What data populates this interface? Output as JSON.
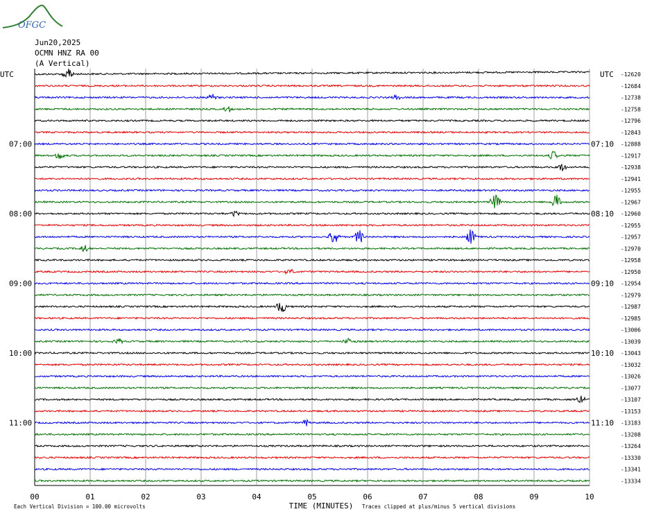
{
  "header": {
    "logo_text": "OFGC",
    "date": "Jun20,2025",
    "station": "OCMN HNZ RA 00",
    "component": "(A Vertical)"
  },
  "colors": {
    "trace_cycle": [
      "#000000",
      "#e00000",
      "#0000e0",
      "#007000"
    ],
    "grid": "#888888",
    "logo": "#2f7f2f"
  },
  "chart_data": {
    "type": "line",
    "title": "",
    "xlabel": "TIME (MINUTES)",
    "ylabel": "",
    "xlim": [
      0,
      10
    ],
    "x_ticks": [
      "00",
      "01",
      "02",
      "03",
      "04",
      "05",
      "06",
      "07",
      "08",
      "09",
      "10"
    ],
    "left_axis_label": "UTC",
    "right_axis_label": "UTC",
    "left_time_labels": [
      {
        "trace": 6,
        "label": "07:00"
      },
      {
        "trace": 12,
        "label": "08:00"
      },
      {
        "trace": 18,
        "label": "09:00"
      },
      {
        "trace": 24,
        "label": "10:00"
      },
      {
        "trace": 30,
        "label": "11:00"
      }
    ],
    "right_time_labels": [
      {
        "trace": 6,
        "label": "07:10"
      },
      {
        "trace": 12,
        "label": "08:10"
      },
      {
        "trace": 18,
        "label": "09:10"
      },
      {
        "trace": 24,
        "label": "10:10"
      },
      {
        "trace": 30,
        "label": "11:10"
      }
    ],
    "trace_offsets": [
      "-12620",
      "-12684",
      "-12738",
      "-12758",
      "-12796",
      "-12843",
      "-12888",
      "-12917",
      "-12938",
      "-12941",
      "-12955",
      "-12967",
      "-12960",
      "-12955",
      "-12957",
      "-12970",
      "-12958",
      "-12950",
      "-12954",
      "-12979",
      "-12987",
      "-12985",
      "-13006",
      "-13039",
      "-13043",
      "-13032",
      "-13026",
      "-13077",
      "-13107",
      "-13153",
      "-13183",
      "-13208",
      "-13264",
      "-13330",
      "-13341",
      "-13334"
    ],
    "events": [
      {
        "trace": 0,
        "minute": 0.6,
        "amplitude": 0.9
      },
      {
        "trace": 2,
        "minute": 3.2,
        "amplitude": 0.35
      },
      {
        "trace": 2,
        "minute": 6.5,
        "amplitude": 0.3
      },
      {
        "trace": 3,
        "minute": 3.5,
        "amplitude": 0.3
      },
      {
        "trace": 7,
        "minute": 0.45,
        "amplitude": 0.35
      },
      {
        "trace": 7,
        "minute": 9.35,
        "amplitude": 0.45
      },
      {
        "trace": 8,
        "minute": 9.5,
        "amplitude": 0.35
      },
      {
        "trace": 11,
        "minute": 8.3,
        "amplitude": 0.8
      },
      {
        "trace": 11,
        "minute": 9.4,
        "amplitude": 0.8
      },
      {
        "trace": 12,
        "minute": 3.6,
        "amplitude": 0.3
      },
      {
        "trace": 14,
        "minute": 5.4,
        "amplitude": 0.9
      },
      {
        "trace": 14,
        "minute": 5.85,
        "amplitude": 0.75
      },
      {
        "trace": 14,
        "minute": 7.85,
        "amplitude": 0.75
      },
      {
        "trace": 15,
        "minute": 0.9,
        "amplitude": 0.35
      },
      {
        "trace": 17,
        "minute": 4.6,
        "amplitude": 0.3
      },
      {
        "trace": 20,
        "minute": 4.45,
        "amplitude": 0.7
      },
      {
        "trace": 23,
        "minute": 1.5,
        "amplitude": 0.3
      },
      {
        "trace": 23,
        "minute": 5.65,
        "amplitude": 0.3
      },
      {
        "trace": 28,
        "minute": 9.85,
        "amplitude": 0.35
      },
      {
        "trace": 30,
        "minute": 4.9,
        "amplitude": 0.3
      }
    ]
  },
  "footer": {
    "scale_note": "Each Vertical Division =  100.00 microvolts",
    "clip_note": "Traces clipped at plus/minus 5 vertical divisions"
  }
}
